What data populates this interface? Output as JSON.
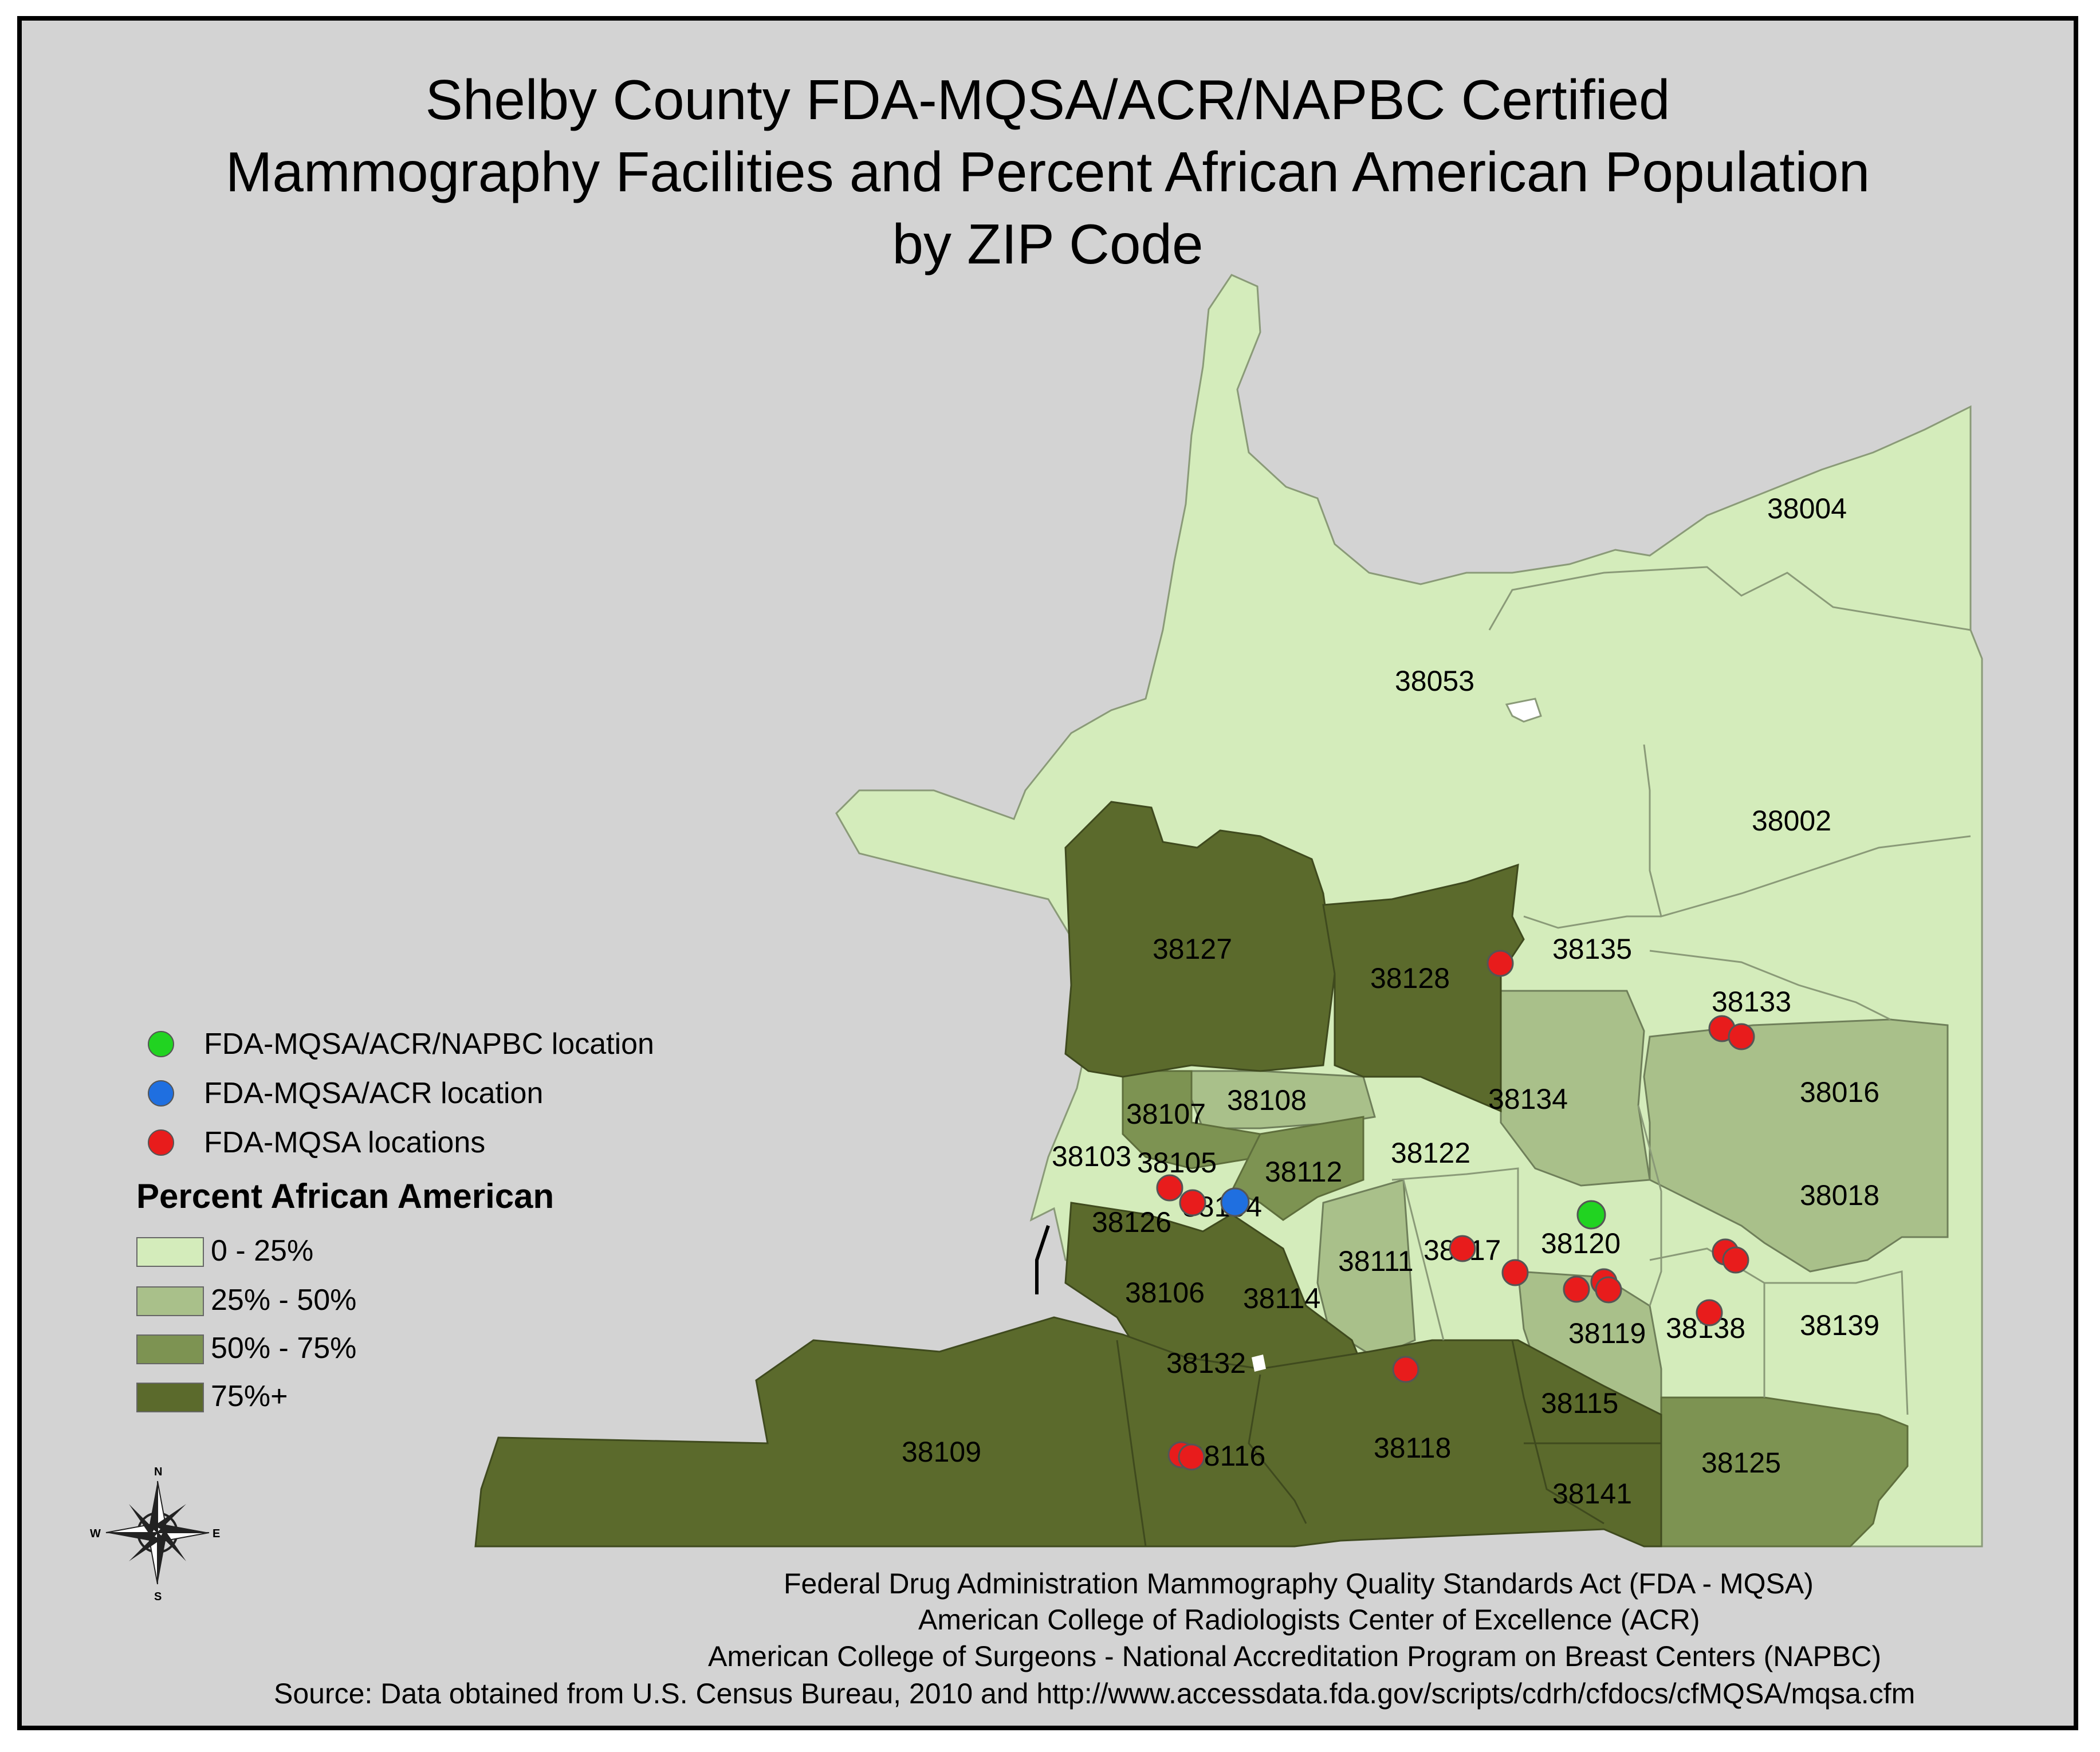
{
  "title": {
    "line1": "Shelby County FDA-MQSA/ACR/NAPBC Certified",
    "line2": "Mammography Facilities and Percent African American Population",
    "line3": "by ZIP Code"
  },
  "legend": {
    "points": [
      {
        "label": "FDA-MQSA/ACR/NAPBC location",
        "color": "#21d321"
      },
      {
        "label": "FDA-MQSA/ACR location",
        "color": "#1f6fe0"
      },
      {
        "label": "FDA-MQSA locations",
        "color": "#e81c1c"
      }
    ],
    "heading": "Percent African American",
    "classes": [
      {
        "label": "0 - 25%",
        "color": "#d4ecbb"
      },
      {
        "label": "25% - 50%",
        "color": "#a9c08a"
      },
      {
        "label": "50% - 75%",
        "color": "#7d9352"
      },
      {
        "label": "75%+",
        "color": "#5b6a2c"
      }
    ]
  },
  "compass": {
    "n": "N",
    "s": "S",
    "e": "E",
    "w": "W"
  },
  "zip_labels": [
    "38004",
    "38053",
    "38002",
    "38127",
    "38128",
    "38135",
    "38133",
    "38134",
    "38016",
    "38107",
    "38108",
    "38103",
    "38105",
    "38112",
    "38122",
    "38018",
    "38104",
    "38126",
    "38120",
    "38111",
    "38117",
    "38106",
    "38114",
    "38119",
    "38138",
    "38139",
    "38132",
    "38115",
    "38109",
    "38116",
    "38118",
    "38125",
    "38141"
  ],
  "footer": {
    "line1": "Federal Drug Administration Mammography Quality Standards Act (FDA - MQSA)",
    "line2": "American College of Radiologists Center of Excellence (ACR)",
    "line3": "American College of Surgeons - National Accreditation Program on Breast Centers (NAPBC)",
    "line4": "Source: Data obtained from U.S. Census Bureau, 2010 and http://www.accessdata.fda.gov/scripts/cdrh/cfdocs/cfMQSA/mqsa.cfm"
  }
}
